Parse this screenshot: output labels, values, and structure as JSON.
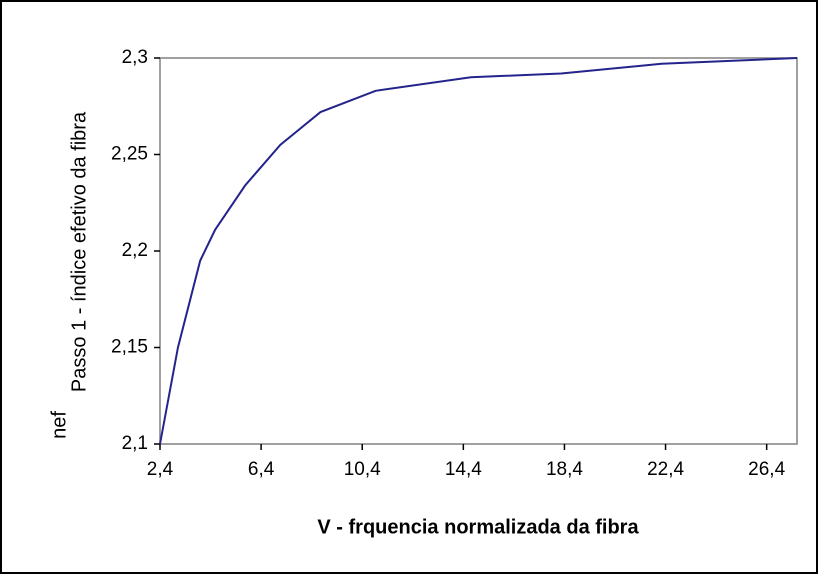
{
  "chart_data": {
    "type": "line",
    "x_label": "V - frquencia normalizada da fibra",
    "y_label": "Passo 1 - índice efetivo da fibra",
    "y_label_2": "nef",
    "x": [
      2.4,
      3.11,
      3.99,
      4.58,
      5.77,
      7.16,
      8.75,
      10.93,
      14.7,
      18.27,
      22.24,
      27.6
    ],
    "values": [
      2.1,
      2.15,
      2.195,
      2.211,
      2.234,
      2.255,
      2.272,
      2.283,
      2.29,
      2.292,
      2.297,
      2.3
    ],
    "color": "#24248c",
    "xlim": [
      2.4,
      27.6
    ],
    "xticks": [
      {
        "value": 2.4,
        "label": "2,4"
      },
      {
        "value": 6.4,
        "label": "6,4"
      },
      {
        "value": 10.4,
        "label": "10,4"
      },
      {
        "value": 14.4,
        "label": "14,4"
      },
      {
        "value": 18.4,
        "label": "18,4"
      },
      {
        "value": 22.4,
        "label": "22,4"
      },
      {
        "value": 26.4,
        "label": "26,4"
      }
    ],
    "ylim": [
      2.1,
      2.3
    ],
    "yticks": [
      {
        "value": 2.1,
        "label": "2,1"
      },
      {
        "value": 2.15,
        "label": "2,15"
      },
      {
        "value": 2.2,
        "label": "2,2"
      },
      {
        "value": 2.25,
        "label": "2,25"
      },
      {
        "value": 2.3,
        "label": "2,3"
      }
    ],
    "grid": false
  }
}
